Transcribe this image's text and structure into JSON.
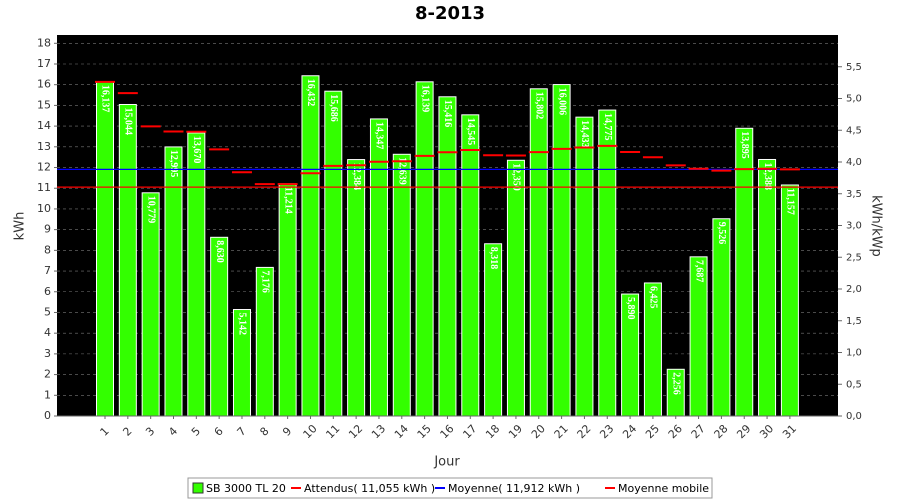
{
  "chart_data": {
    "type": "bar",
    "title": "8-2013",
    "y_label": "kWh",
    "y2_label": "kWh/kWp",
    "x_label": "Jour",
    "categories": [
      "1",
      "2",
      "3",
      "4",
      "5",
      "6",
      "7",
      "8",
      "9",
      "10",
      "11",
      "12",
      "13",
      "14",
      "15",
      "16",
      "17",
      "18",
      "19",
      "20",
      "21",
      "22",
      "23",
      "24",
      "25",
      "26",
      "27",
      "28",
      "29",
      "30",
      "31"
    ],
    "series": [
      {
        "name": "SB 3000 TL 20",
        "type": "bar",
        "color": "#33ff00",
        "values": [
          16.137,
          15.044,
          10.779,
          12.995,
          13.67,
          8.63,
          5.142,
          7.176,
          11.214,
          16.432,
          15.686,
          12.384,
          14.347,
          12.639,
          16.139,
          15.416,
          14.545,
          8.318,
          12.35,
          15.802,
          16.006,
          14.433,
          14.775,
          5.89,
          6.425,
          2.256,
          7.687,
          9.526,
          13.895,
          12.388,
          11.157
        ],
        "value_labels": [
          "16,137",
          "15,044",
          "10,779",
          "12,995",
          "13,670",
          "8,630",
          "5,142",
          "7,176",
          "11,214",
          "16,432",
          "15,686",
          "12,384",
          "14,347",
          "12,639",
          "16,139",
          "15,416",
          "14,545",
          "8,318",
          "12,350",
          "15,802",
          "16,006",
          "14,433",
          "14,775",
          "5,890",
          "6,425",
          "2,256",
          "7,687",
          "9,526",
          "13,895",
          "12,388",
          "11,157"
        ]
      },
      {
        "name": "Attendus( 11,055 kWh )",
        "type": "hline",
        "color": "#ff0000",
        "value": 11.055
      },
      {
        "name": "Moyenne( 11,912 kWh )",
        "type": "hline",
        "color": "#0000ff",
        "value": 11.912
      },
      {
        "name": "Moyenne mobile",
        "type": "dash",
        "color": "#ff0000",
        "values": [
          16.137,
          15.591,
          13.987,
          13.739,
          13.725,
          12.876,
          11.771,
          11.197,
          11.199,
          11.722,
          12.082,
          12.107,
          12.28,
          12.305,
          12.561,
          12.739,
          12.846,
          12.594,
          12.581,
          12.742,
          12.898,
          12.967,
          13.046,
          12.748,
          12.495,
          12.101,
          11.938,
          11.852,
          11.922,
          11.938,
          11.912
        ]
      }
    ],
    "ylim": [
      0,
      18.4
    ],
    "yticks": [
      0,
      1,
      2,
      3,
      4,
      5,
      6,
      7,
      8,
      9,
      10,
      11,
      12,
      13,
      14,
      15,
      16,
      17,
      18
    ],
    "y2lim": [
      0,
      6
    ],
    "y2ticks": [
      {
        "value": 0,
        "label": "0,0"
      },
      {
        "value": 0.5,
        "label": "0,5"
      },
      {
        "value": 1,
        "label": "1,0"
      },
      {
        "value": 1.5,
        "label": "1,5"
      },
      {
        "value": 2,
        "label": "2,0"
      },
      {
        "value": 2.5,
        "label": "2,5"
      },
      {
        "value": 3,
        "label": "3,0"
      },
      {
        "value": 3.5,
        "label": "3,5"
      },
      {
        "value": 4,
        "label": "4,0"
      },
      {
        "value": 4.5,
        "label": "4,5"
      },
      {
        "value": 5,
        "label": "5,0"
      },
      {
        "value": 5.5,
        "label": "5,5"
      }
    ],
    "grid": true,
    "legend": "bottom"
  }
}
